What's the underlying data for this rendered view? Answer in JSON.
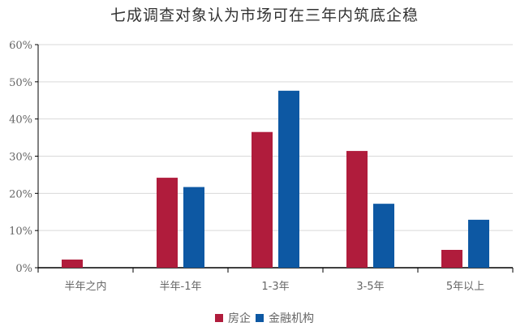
{
  "chart_data": {
    "type": "bar",
    "title": "七成调查对象认为市场可在三年内筑底企稳",
    "categories": [
      "半年之内",
      "半年-1年",
      "1-3年",
      "3-5年",
      "5年以上"
    ],
    "series": [
      {
        "name": "房企",
        "color": "#B01C3C",
        "values": [
          2.2,
          24.2,
          36.5,
          31.4,
          4.8
        ]
      },
      {
        "name": "金融机构",
        "color": "#0D58A3",
        "values": [
          0,
          21.7,
          47.6,
          17.2,
          12.9
        ]
      }
    ],
    "xlabel": "",
    "ylabel": "",
    "ylim": [
      0,
      60
    ],
    "yticks": [
      "0%",
      "10%",
      "20%",
      "30%",
      "40%",
      "50%",
      "60%"
    ],
    "grid": true,
    "legend_position": "bottom"
  }
}
